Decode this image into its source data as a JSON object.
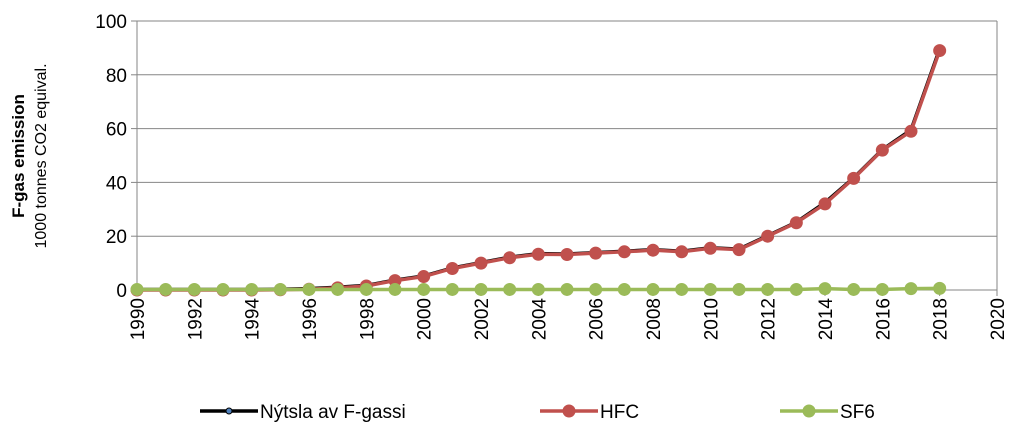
{
  "chart_data": {
    "type": "line",
    "y_label_bold": "F-gas emission",
    "y_label": "1000 tonnes CO2 equival.",
    "x": [
      1990,
      1991,
      1992,
      1993,
      1994,
      1995,
      1996,
      1997,
      1998,
      1999,
      2000,
      2001,
      2002,
      2003,
      2004,
      2005,
      2006,
      2007,
      2008,
      2009,
      2010,
      2011,
      2012,
      2013,
      2014,
      2015,
      2016,
      2017,
      2018
    ],
    "series": [
      {
        "name": "Nýtsla av F-gassi",
        "color": "#000000",
        "marker_color": "#4f81bd",
        "values": [
          0.2,
          0.2,
          0.2,
          0.2,
          0.2,
          0.3,
          0.5,
          1.0,
          1.7,
          3.7,
          5.2,
          8.2,
          10.2,
          12.2,
          13.5,
          13.4,
          13.9,
          14.4,
          15.0,
          14.4,
          15.7,
          15.2,
          20.2,
          25.2,
          32.5,
          41.7,
          52.2,
          59.5,
          89.6
        ]
      },
      {
        "name": "HFC",
        "color": "#c0504d",
        "values": [
          0,
          0,
          0,
          0,
          0,
          0.1,
          0.3,
          0.8,
          1.5,
          3.5,
          5,
          8,
          10,
          12,
          13.3,
          13.2,
          13.7,
          14.2,
          14.8,
          14.2,
          15.5,
          15,
          20,
          25,
          32,
          41.5,
          52,
          59,
          89
        ]
      },
      {
        "name": "SF6",
        "color": "#9bbb59",
        "values": [
          0.2,
          0.2,
          0.2,
          0.2,
          0.2,
          0.2,
          0.2,
          0.2,
          0.2,
          0.2,
          0.2,
          0.2,
          0.2,
          0.2,
          0.2,
          0.2,
          0.2,
          0.2,
          0.2,
          0.2,
          0.2,
          0.2,
          0.2,
          0.2,
          0.5,
          0.2,
          0.2,
          0.5,
          0.6
        ]
      }
    ],
    "xlim": [
      1990,
      2020
    ],
    "xticks": [
      1990,
      1992,
      1994,
      1996,
      1998,
      2000,
      2002,
      2004,
      2006,
      2008,
      2010,
      2012,
      2014,
      2016,
      2018,
      2020
    ],
    "ylim": [
      0,
      100
    ],
    "yticks": [
      0,
      20,
      40,
      60,
      80,
      100
    ],
    "grid": true,
    "legend": "bottom"
  }
}
